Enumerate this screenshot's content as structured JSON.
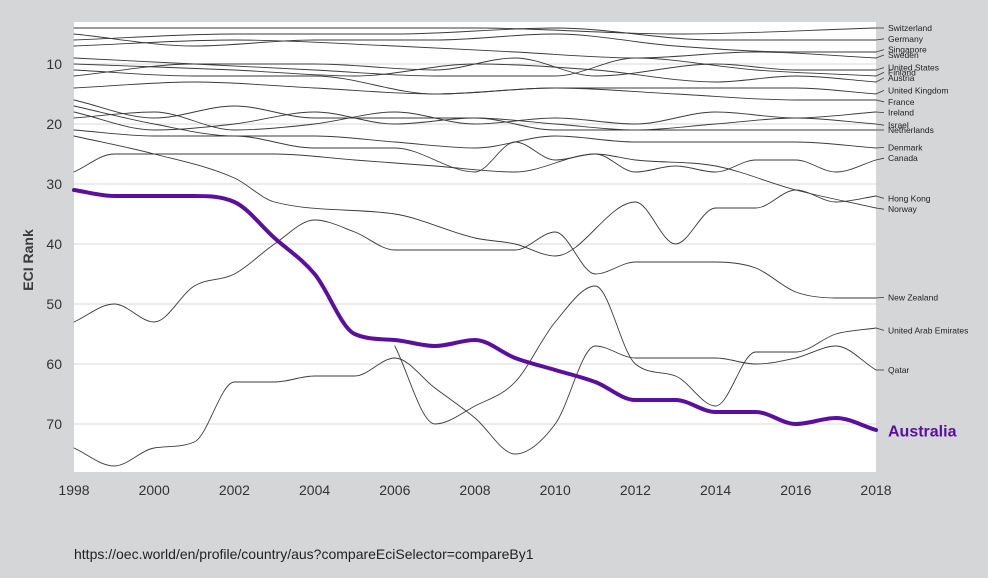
{
  "chart_data": {
    "type": "line",
    "xlabel": "",
    "ylabel": "ECI Rank",
    "xlim": [
      1998,
      2018
    ],
    "ylim": [
      3,
      78
    ],
    "y_reversed": true,
    "x_ticks": [
      1998,
      2000,
      2002,
      2004,
      2006,
      2008,
      2010,
      2012,
      2014,
      2016,
      2018
    ],
    "y_ticks": [
      10,
      20,
      30,
      40,
      50,
      60,
      70
    ],
    "grid": "horizontal",
    "highlight_color": "#5b0f9e",
    "series": [
      {
        "name": "Switzerland",
        "x": [
          1998,
          2003,
          2008,
          2013,
          2018
        ],
        "y": [
          4,
          4,
          4,
          5,
          4
        ]
      },
      {
        "name": "Germany",
        "x": [
          1998,
          2002,
          2006,
          2010,
          2014,
          2018
        ],
        "y": [
          6,
          5,
          5,
          4,
          6,
          6
        ]
      },
      {
        "name": "Singapore",
        "x": [
          1998,
          2001,
          2004,
          2007,
          2010,
          2013,
          2016,
          2018
        ],
        "y": [
          5,
          7,
          6,
          6,
          5,
          7,
          8,
          8
        ]
      },
      {
        "name": "Sweden",
        "x": [
          1998,
          2002,
          2006,
          2009,
          2012,
          2015,
          2018
        ],
        "y": [
          7,
          6,
          7,
          8,
          9,
          8,
          9
        ]
      },
      {
        "name": "United States",
        "x": [
          1998,
          2001,
          2004,
          2007,
          2009,
          2011,
          2014,
          2016,
          2018
        ],
        "y": [
          12,
          10,
          10,
          11,
          9,
          12,
          10,
          11,
          11
        ]
      },
      {
        "name": "Finland",
        "x": [
          1998,
          2001,
          2004,
          2007,
          2010,
          2012,
          2015,
          2018
        ],
        "y": [
          9,
          10,
          11,
          12,
          12,
          9,
          11,
          12
        ]
      },
      {
        "name": "Austria",
        "x": [
          1998,
          2002,
          2005,
          2008,
          2011,
          2014,
          2016,
          2018
        ],
        "y": [
          10,
          11,
          12,
          10,
          11,
          13,
          12,
          13
        ]
      },
      {
        "name": "United Kingdom",
        "x": [
          1998,
          2001,
          2004,
          2007,
          2010,
          2013,
          2016,
          2018
        ],
        "y": [
          11,
          12,
          12,
          15,
          14,
          14,
          14,
          15
        ]
      },
      {
        "name": "France",
        "x": [
          1998,
          2001,
          2004,
          2007,
          2010,
          2013,
          2016,
          2018
        ],
        "y": [
          14,
          13,
          14,
          15,
          14,
          15,
          16,
          16
        ]
      },
      {
        "name": "Ireland",
        "x": [
          1998,
          2000,
          2002,
          2004,
          2006,
          2008,
          2010,
          2012,
          2014,
          2016,
          2018
        ],
        "y": [
          19,
          18,
          21,
          20,
          18,
          20,
          19,
          20,
          18,
          19,
          18
        ]
      },
      {
        "name": "Israel",
        "x": [
          1998,
          2000,
          2002,
          2004,
          2006,
          2008,
          2010,
          2012,
          2014,
          2016,
          2018
        ],
        "y": [
          18,
          21,
          20,
          18,
          20,
          19,
          20,
          21,
          20,
          19,
          20
        ]
      },
      {
        "name": "Netherlands",
        "x": [
          1998,
          2000,
          2002,
          2004,
          2006,
          2008,
          2010,
          2012,
          2014,
          2016,
          2018
        ],
        "y": [
          16,
          19,
          17,
          19,
          19,
          19,
          21,
          21,
          21,
          21,
          21
        ]
      },
      {
        "name": "Denmark",
        "x": [
          1998,
          2000,
          2002,
          2004,
          2006,
          2008,
          2010,
          2012,
          2014,
          2016,
          2018
        ],
        "y": [
          17,
          20,
          22,
          22,
          23,
          24,
          22,
          23,
          23,
          23,
          24
        ]
      },
      {
        "name": "Canada",
        "x": [
          1998,
          1999,
          2001,
          2003,
          2005,
          2007,
          2009,
          2011,
          2012,
          2013,
          2014,
          2015,
          2016,
          2017,
          2018
        ],
        "y": [
          28,
          25,
          25,
          25,
          26,
          27,
          28,
          25,
          28,
          27,
          28,
          26,
          26,
          28,
          26
        ]
      },
      {
        "name": "Hong Kong",
        "x": [
          1998,
          2000,
          2002,
          2003,
          2006,
          2008,
          2009,
          2010,
          2012,
          2013,
          2014,
          2015,
          2016,
          2017,
          2018
        ],
        "y": [
          22,
          25,
          29,
          33,
          35,
          39,
          40,
          42,
          33,
          40,
          34,
          34,
          31,
          33,
          32
        ]
      },
      {
        "name": "Norway",
        "x": [
          1998,
          2000,
          2002,
          2004,
          2006,
          2008,
          2009,
          2010,
          2011,
          2012,
          2014,
          2016,
          2018
        ],
        "y": [
          21,
          22,
          22,
          24,
          24,
          28,
          23,
          26,
          25,
          26,
          27,
          31,
          34
        ]
      },
      {
        "name": "New Zealand",
        "x": [
          1998,
          1999,
          2000,
          2001,
          2002,
          2003,
          2004,
          2005,
          2006,
          2009,
          2010,
          2011,
          2012,
          2014,
          2015,
          2016,
          2017,
          2018
        ],
        "y": [
          53,
          50,
          53,
          47,
          45,
          40,
          36,
          38,
          41,
          41,
          38,
          45,
          43,
          43,
          44,
          48,
          49,
          49
        ]
      },
      {
        "name": "United Arab Emirates",
        "x": [
          2006,
          2007,
          2008,
          2009,
          2010,
          2011,
          2012,
          2013,
          2014,
          2015,
          2016,
          2017,
          2018
        ],
        "y": [
          57,
          70,
          67,
          63,
          53,
          47,
          60,
          62,
          67,
          58,
          58,
          55,
          54
        ]
      },
      {
        "name": "Qatar",
        "x": [
          1998,
          1999,
          2000,
          2001,
          2002,
          2003,
          2004,
          2005,
          2006,
          2007,
          2008,
          2009,
          2010,
          2011,
          2012,
          2013,
          2014,
          2015,
          2016,
          2017,
          2018
        ],
        "y": [
          74,
          77,
          74,
          73,
          63,
          63,
          62,
          62,
          59,
          64,
          69,
          75,
          70,
          57,
          59,
          59,
          59,
          60,
          59,
          57,
          61
        ]
      },
      {
        "name": "Australia",
        "x": [
          1998,
          1999,
          2000,
          2001,
          2002,
          2003,
          2004,
          2005,
          2006,
          2007,
          2008,
          2009,
          2010,
          2011,
          2012,
          2013,
          2014,
          2015,
          2016,
          2017,
          2018
        ],
        "y": [
          31,
          32,
          32,
          32,
          33,
          39,
          45,
          55,
          56,
          57,
          56,
          59,
          61,
          63,
          66,
          66,
          68,
          68,
          70,
          69,
          71
        ],
        "highlight": true
      }
    ],
    "label_positions": [
      {
        "name": "Switzerland",
        "rank": 4
      },
      {
        "name": "Germany",
        "rank": 5.8
      },
      {
        "name": "Singapore",
        "rank": 7.6
      },
      {
        "name": "Sweden",
        "rank": 8.5
      },
      {
        "name": "United States",
        "rank": 10.6
      },
      {
        "name": "Finland",
        "rank": 11.4
      },
      {
        "name": "Austria",
        "rank": 12.3
      },
      {
        "name": "United Kingdom",
        "rank": 14.4
      },
      {
        "name": "France",
        "rank": 16.3
      },
      {
        "name": "Ireland",
        "rank": 18.1
      },
      {
        "name": "Israel",
        "rank": 20.2
      },
      {
        "name": "Netherlands",
        "rank": 21.0
      },
      {
        "name": "Denmark",
        "rank": 23.9
      },
      {
        "name": "Canada",
        "rank": 25.7
      },
      {
        "name": "Hong Kong",
        "rank": 32.4
      },
      {
        "name": "Norway",
        "rank": 34.2
      },
      {
        "name": "New Zealand",
        "rank": 48.9
      },
      {
        "name": "United Arab Emirates",
        "rank": 54.4
      },
      {
        "name": "Qatar",
        "rank": 61.0
      },
      {
        "name": "Australia",
        "rank": 71.1
      }
    ]
  },
  "footer": {
    "source_url": "https://oec.world/en/profile/country/aus?compareEciSelector=compareBy1"
  }
}
